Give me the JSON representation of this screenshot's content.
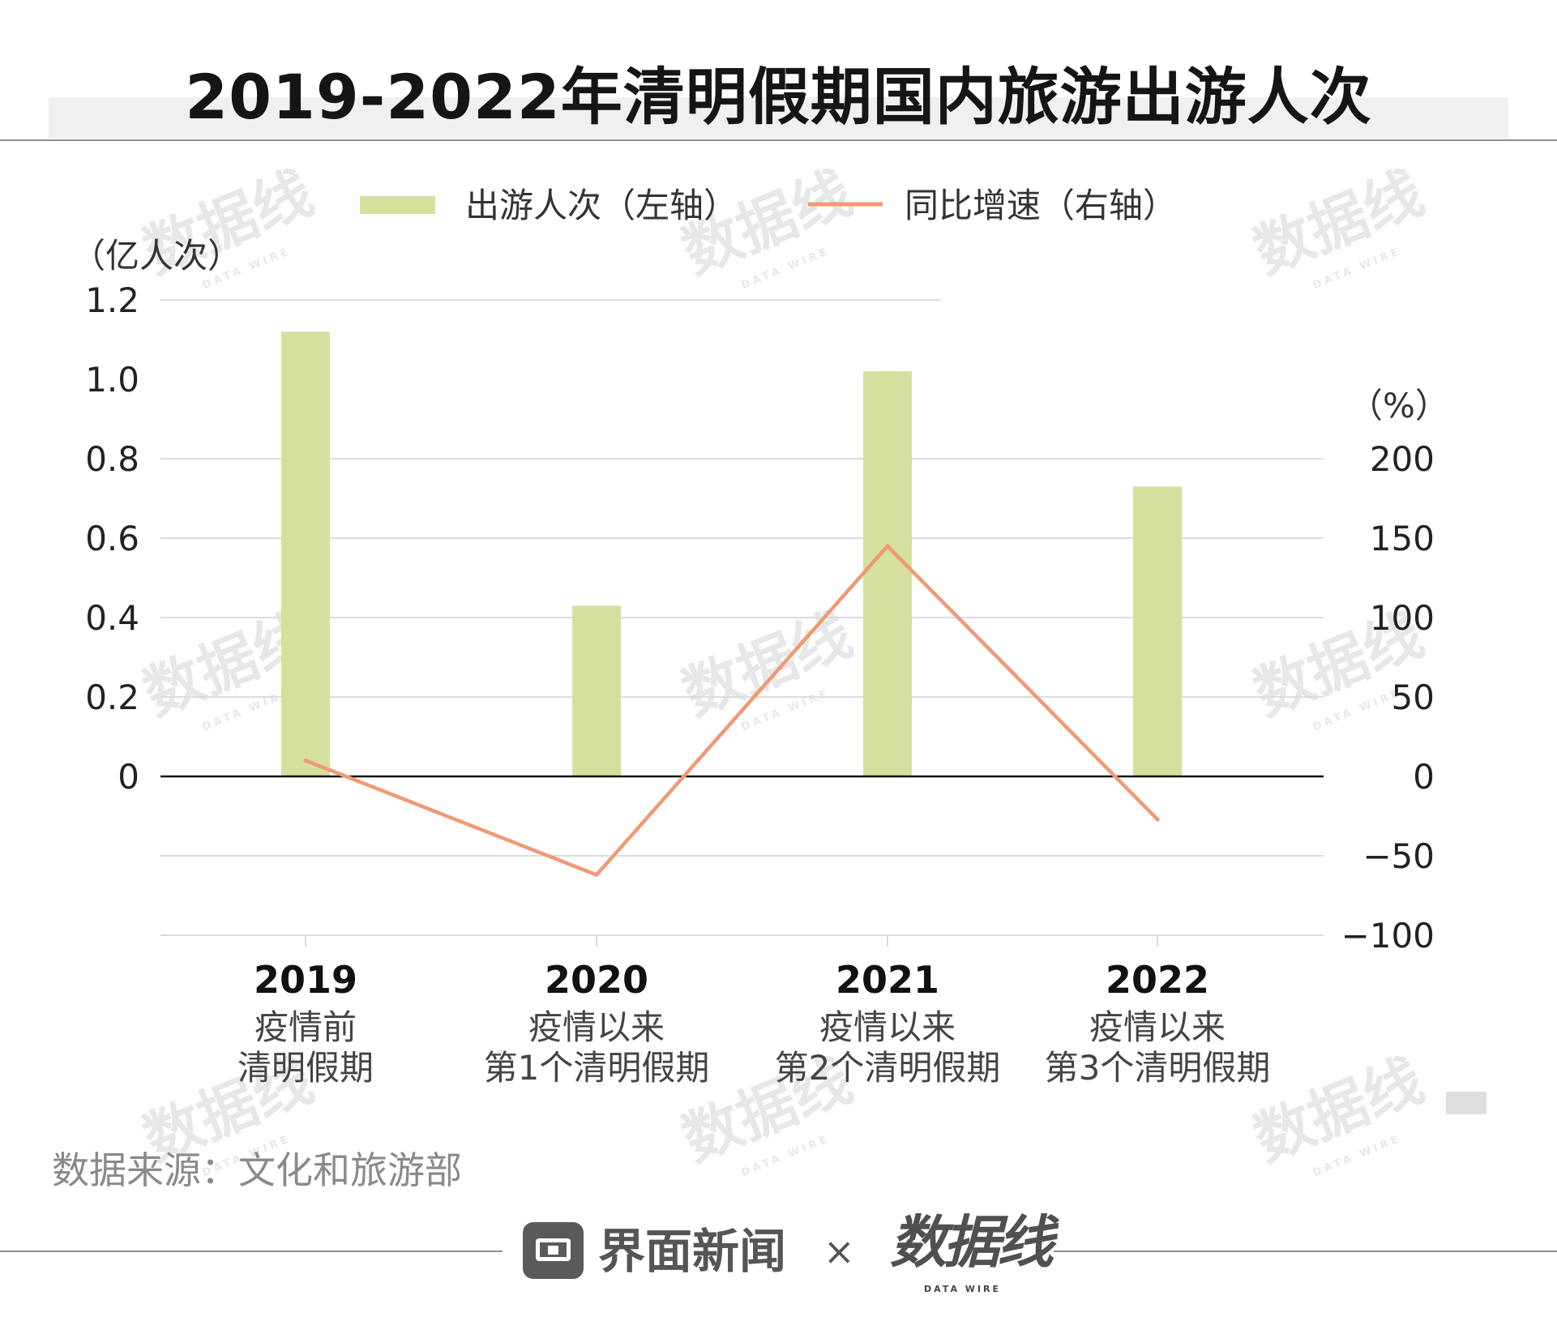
{
  "title": "2019-2022年清明假期国内旅游出游人次",
  "chart_data": {
    "type": "bar",
    "categories": [
      "2019",
      "2020",
      "2021",
      "2022"
    ],
    "category_sublabels": [
      [
        "疫情前",
        "清明假期"
      ],
      [
        "疫情以来",
        "第1个清明假期"
      ],
      [
        "疫情以来",
        "第2个清明假期"
      ],
      [
        "疫情以来",
        "第3个清明假期"
      ]
    ],
    "series": [
      {
        "name": "出游人次（左轴）",
        "type": "bar",
        "axis": "left",
        "color": "#d5e09f",
        "values": [
          1.12,
          0.43,
          1.02,
          0.73
        ]
      },
      {
        "name": "同比增速（右轴）",
        "type": "line",
        "axis": "right",
        "color": "#ee9a74",
        "values": [
          10,
          -62,
          145,
          -27
        ]
      }
    ],
    "y_left": {
      "unit": "（亿人次）",
      "ylim": [
        -0.4,
        1.2
      ],
      "ticks": [
        0,
        0.2,
        0.4,
        0.6,
        0.8,
        1.0,
        1.2
      ],
      "tick_labels": [
        "0",
        "0.2",
        "0.4",
        "0.6",
        "0.8",
        "1.0",
        "1.2"
      ]
    },
    "y_right": {
      "unit": "（%）",
      "ylim": [
        -100,
        300
      ],
      "ticks": [
        -100,
        -50,
        0,
        50,
        100,
        150,
        200
      ],
      "tick_labels": [
        "−100",
        "−50",
        "0",
        "50",
        "100",
        "150",
        "200"
      ]
    },
    "grid": true,
    "legend_position": "top-center"
  },
  "source": "数据来源：文化和旅游部",
  "footer": {
    "brand": "界面新闻",
    "cross": "×",
    "partner": "数据线",
    "partner_sub": "DATA WIRE"
  },
  "watermark": {
    "text": "数据线",
    "sub": "DATA WIRE"
  },
  "colors": {
    "bar": "#d5e09f",
    "line": "#ee9a74",
    "grid": "#dcdcdc",
    "zero_line": "#111111"
  }
}
